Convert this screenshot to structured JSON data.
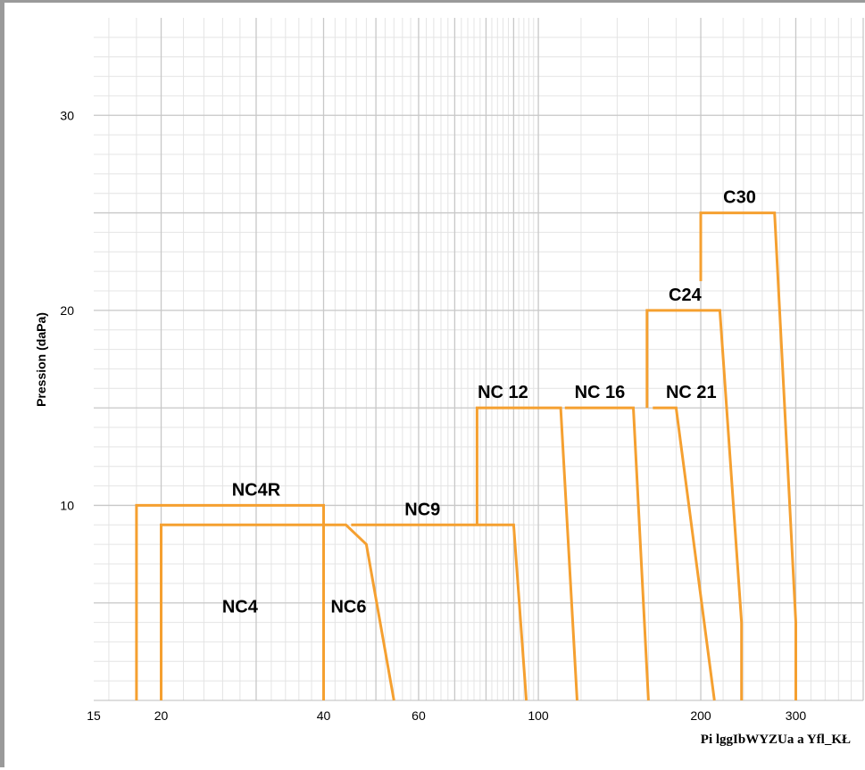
{
  "chart_data": {
    "type": "line",
    "title": "",
    "ylabel": "Pression (daPa)",
    "xlabel": "Pi lggIbWYZUa a Yfl_KŁ",
    "x_scale": "log",
    "xlim": [
      15,
      400
    ],
    "ylim": [
      0,
      35
    ],
    "x_ticks": [
      15,
      20,
      40,
      60,
      100,
      200,
      300
    ],
    "y_ticks": [
      10,
      20,
      30
    ],
    "grid": true,
    "line_color": "#f5a030",
    "series": [
      {
        "name": "NC4R",
        "points": [
          [
            18,
            0
          ],
          [
            18,
            10
          ],
          [
            40,
            10
          ],
          [
            40,
            0
          ]
        ]
      },
      {
        "name": "NC4",
        "points": [
          [
            20,
            0
          ],
          [
            20,
            9
          ],
          [
            40,
            9
          ]
        ]
      },
      {
        "name": "NC6",
        "points": [
          [
            40,
            9
          ],
          [
            44,
            9
          ],
          [
            48,
            8
          ],
          [
            54,
            0
          ]
        ]
      },
      {
        "name": "NC9",
        "points": [
          [
            45,
            9
          ],
          [
            90,
            9
          ],
          [
            95,
            0
          ]
        ]
      },
      {
        "name": "NC 12",
        "points": [
          [
            77,
            9
          ],
          [
            77,
            15
          ],
          [
            110,
            15
          ],
          [
            118,
            0
          ]
        ]
      },
      {
        "name": "NC 16",
        "points": [
          [
            112,
            15
          ],
          [
            150,
            15
          ],
          [
            160,
            0
          ]
        ]
      },
      {
        "name": "NC 21",
        "points": [
          [
            163,
            15
          ],
          [
            180,
            15
          ],
          [
            212,
            0
          ]
        ]
      },
      {
        "name": "C24",
        "points": [
          [
            159,
            15
          ],
          [
            159,
            20
          ],
          [
            217,
            20
          ],
          [
            238,
            4
          ],
          [
            238,
            0
          ]
        ]
      },
      {
        "name": "C30",
        "points": [
          [
            200,
            21.5
          ],
          [
            200,
            25
          ],
          [
            274,
            25
          ],
          [
            300,
            4
          ],
          [
            300,
            0
          ]
        ]
      }
    ],
    "labels": [
      {
        "text": "NC4R",
        "x": 30,
        "y": 10.5
      },
      {
        "text": "NC4",
        "x": 28,
        "y": 4.5
      },
      {
        "text": "NC6",
        "x": 44.5,
        "y": 4.5
      },
      {
        "text": "NC9",
        "x": 61,
        "y": 9.5
      },
      {
        "text": "NC 12",
        "x": 86,
        "y": 15.5
      },
      {
        "text": "NC 16",
        "x": 130,
        "y": 15.5
      },
      {
        "text": "NC 21",
        "x": 192,
        "y": 15.5
      },
      {
        "text": "C24",
        "x": 187,
        "y": 20.5
      },
      {
        "text": "C30",
        "x": 236,
        "y": 25.5
      }
    ]
  }
}
